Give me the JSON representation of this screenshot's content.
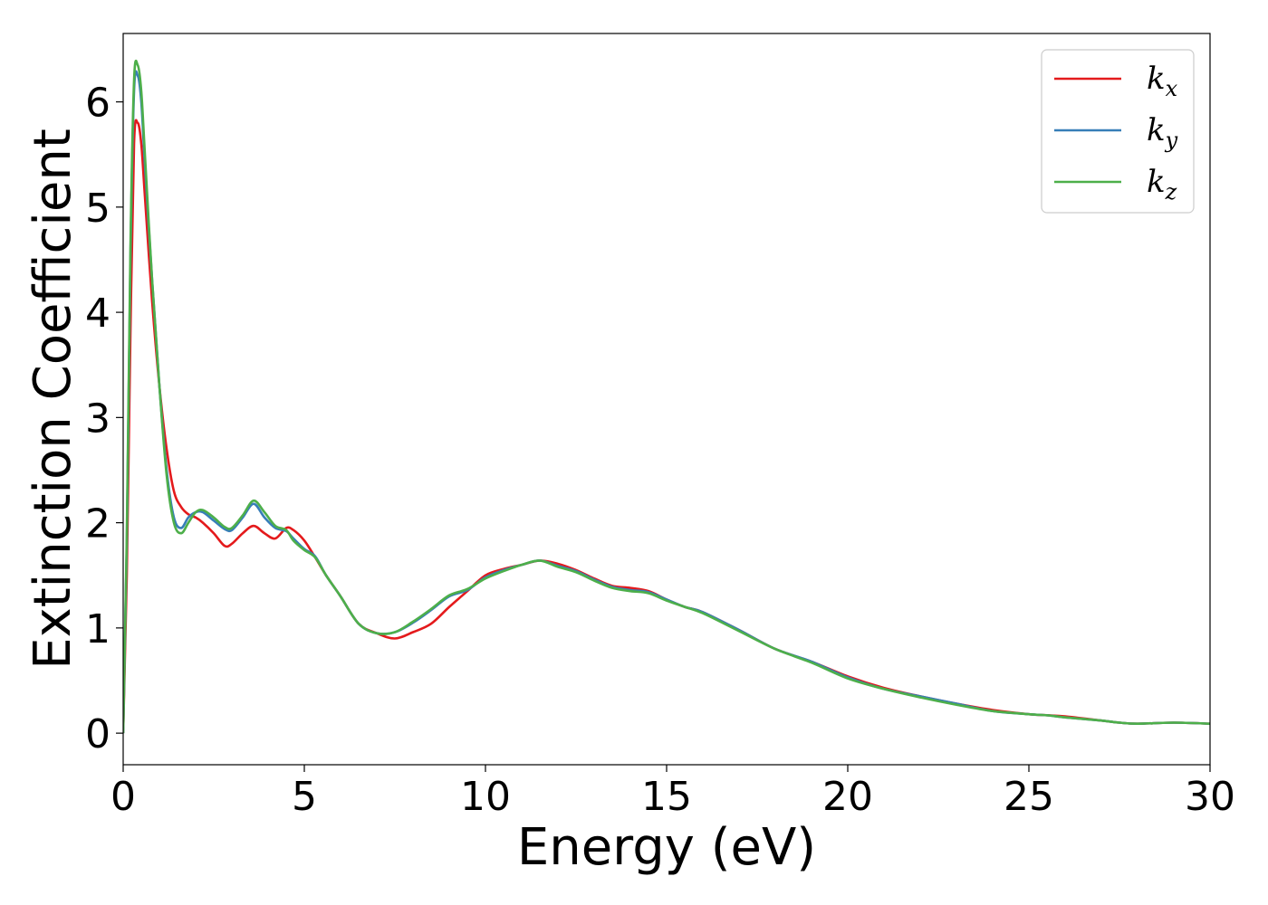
{
  "chart_data": {
    "type": "line",
    "xlabel": "Energy (eV)",
    "ylabel": "Extinction Coefficient",
    "xlim": [
      0,
      30
    ],
    "ylim": [
      -0.3,
      6.65
    ],
    "xticks": [
      0,
      5,
      10,
      15,
      20,
      25,
      30
    ],
    "yticks": [
      0,
      1,
      2,
      3,
      4,
      5,
      6
    ],
    "grid": false,
    "legend_position": "top-right",
    "series": [
      {
        "name": "k_x",
        "label_base": "k",
        "label_sub": "x",
        "color": "#e41a1c",
        "x": [
          0,
          0.1,
          0.2,
          0.3,
          0.4,
          0.5,
          0.6,
          0.8,
          1.0,
          1.2,
          1.4,
          1.6,
          1.8,
          2.0,
          2.2,
          2.5,
          2.8,
          3.0,
          3.3,
          3.6,
          3.9,
          4.2,
          4.5,
          4.7,
          5.0,
          5.3,
          5.6,
          6.0,
          6.5,
          7.0,
          7.5,
          8.0,
          8.5,
          9.0,
          9.5,
          10.0,
          10.5,
          11.0,
          11.5,
          12.0,
          12.5,
          13.0,
          13.5,
          14.0,
          14.5,
          15.0,
          15.5,
          16.0,
          17.0,
          18.0,
          19.0,
          20.0,
          21.0,
          22.0,
          23.0,
          24.0,
          25.0,
          25.5,
          26.0,
          27.0,
          27.5,
          28.0,
          29.0,
          30.0
        ],
        "y": [
          0.0,
          1.5,
          3.8,
          5.6,
          5.8,
          5.6,
          5.1,
          4.1,
          3.3,
          2.7,
          2.3,
          2.15,
          2.08,
          2.05,
          2.0,
          1.9,
          1.78,
          1.8,
          1.9,
          1.97,
          1.9,
          1.85,
          1.95,
          1.93,
          1.83,
          1.67,
          1.5,
          1.3,
          1.04,
          0.95,
          0.9,
          0.96,
          1.04,
          1.2,
          1.35,
          1.5,
          1.56,
          1.6,
          1.64,
          1.61,
          1.55,
          1.47,
          1.4,
          1.38,
          1.35,
          1.27,
          1.2,
          1.15,
          0.98,
          0.8,
          0.68,
          0.54,
          0.43,
          0.35,
          0.28,
          0.22,
          0.18,
          0.17,
          0.16,
          0.12,
          0.1,
          0.09,
          0.1,
          0.09
        ]
      },
      {
        "name": "k_y",
        "label_base": "k",
        "label_sub": "y",
        "color": "#377eb8",
        "x": [
          0,
          0.1,
          0.2,
          0.3,
          0.4,
          0.5,
          0.6,
          0.8,
          1.0,
          1.2,
          1.4,
          1.6,
          1.8,
          2.0,
          2.2,
          2.5,
          2.8,
          3.0,
          3.3,
          3.6,
          3.9,
          4.2,
          4.5,
          4.7,
          5.0,
          5.3,
          5.6,
          6.0,
          6.5,
          7.0,
          7.5,
          8.0,
          8.5,
          9.0,
          9.5,
          10.0,
          10.5,
          11.0,
          11.5,
          12.0,
          12.5,
          13.0,
          13.5,
          14.0,
          14.5,
          15.0,
          15.5,
          16.0,
          17.0,
          18.0,
          19.0,
          20.0,
          21.0,
          22.0,
          23.0,
          24.0,
          25.0,
          25.5,
          26.0,
          27.0,
          27.5,
          28.0,
          29.0,
          30.0
        ],
        "y": [
          0.0,
          1.8,
          4.5,
          6.1,
          6.25,
          6.0,
          5.4,
          4.3,
          3.3,
          2.5,
          2.05,
          1.95,
          2.05,
          2.1,
          2.1,
          2.02,
          1.94,
          1.93,
          2.05,
          2.18,
          2.05,
          1.95,
          1.92,
          1.85,
          1.75,
          1.68,
          1.5,
          1.3,
          1.04,
          0.95,
          0.96,
          1.05,
          1.17,
          1.3,
          1.36,
          1.48,
          1.55,
          1.6,
          1.64,
          1.59,
          1.54,
          1.46,
          1.39,
          1.36,
          1.34,
          1.27,
          1.2,
          1.15,
          0.98,
          0.8,
          0.68,
          0.53,
          0.42,
          0.35,
          0.28,
          0.21,
          0.18,
          0.17,
          0.15,
          0.12,
          0.1,
          0.09,
          0.1,
          0.09
        ]
      },
      {
        "name": "k_z",
        "label_base": "k",
        "label_sub": "z",
        "color": "#4daf4a",
        "x": [
          0,
          0.1,
          0.2,
          0.3,
          0.4,
          0.5,
          0.6,
          0.8,
          1.0,
          1.2,
          1.4,
          1.6,
          1.8,
          2.0,
          2.2,
          2.5,
          2.8,
          3.0,
          3.3,
          3.6,
          3.9,
          4.2,
          4.5,
          4.7,
          5.0,
          5.3,
          5.6,
          6.0,
          6.5,
          7.0,
          7.5,
          8.0,
          8.5,
          9.0,
          9.5,
          10.0,
          10.5,
          11.0,
          11.5,
          12.0,
          12.5,
          13.0,
          13.5,
          14.0,
          14.5,
          15.0,
          15.5,
          16.0,
          17.0,
          18.0,
          19.0,
          20.0,
          21.0,
          22.0,
          23.0,
          24.0,
          25.0,
          25.5,
          26.0,
          27.0,
          27.5,
          28.0,
          29.0,
          30.0
        ],
        "y": [
          0.0,
          1.9,
          4.6,
          6.2,
          6.35,
          6.1,
          5.5,
          4.3,
          3.3,
          2.45,
          2.0,
          1.9,
          2.0,
          2.1,
          2.12,
          2.05,
          1.96,
          1.95,
          2.07,
          2.21,
          2.1,
          1.97,
          1.93,
          1.83,
          1.74,
          1.67,
          1.5,
          1.3,
          1.04,
          0.95,
          0.96,
          1.06,
          1.18,
          1.31,
          1.37,
          1.47,
          1.54,
          1.6,
          1.64,
          1.58,
          1.53,
          1.45,
          1.38,
          1.35,
          1.33,
          1.26,
          1.2,
          1.14,
          0.97,
          0.8,
          0.67,
          0.52,
          0.42,
          0.34,
          0.27,
          0.21,
          0.18,
          0.17,
          0.15,
          0.12,
          0.1,
          0.09,
          0.1,
          0.09
        ]
      }
    ]
  }
}
